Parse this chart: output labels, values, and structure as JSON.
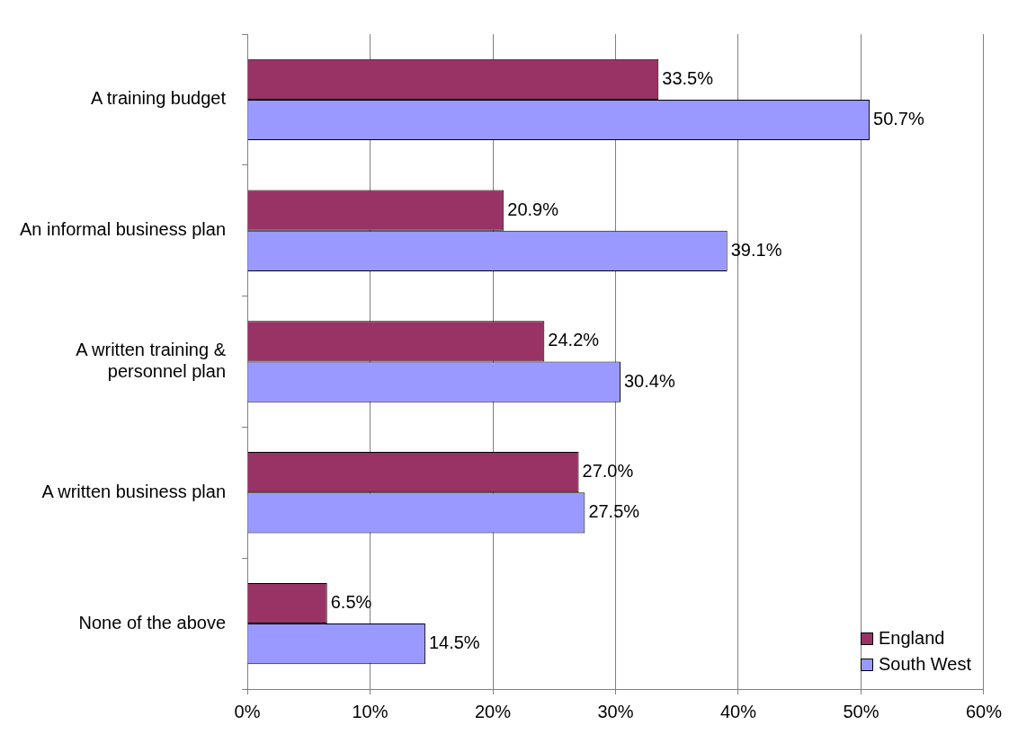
{
  "chart_data": {
    "type": "bar",
    "orientation": "horizontal",
    "categories": [
      "A training budget",
      "An informal business plan",
      "A written training & personnel plan",
      "A written business plan",
      "None of the above"
    ],
    "series": [
      {
        "name": "England",
        "color": "#993366",
        "values": [
          33.5,
          20.9,
          24.2,
          27.0,
          6.5
        ],
        "value_labels": [
          "33.5%",
          "20.9%",
          "24.2%",
          "27.0%",
          "6.5%"
        ]
      },
      {
        "name": "South West",
        "color": "#9999ff",
        "values": [
          50.7,
          39.1,
          30.4,
          27.5,
          14.5
        ],
        "value_labels": [
          "50.7%",
          "39.1%",
          "30.4%",
          "27.5%",
          "14.5%"
        ]
      }
    ],
    "xlim": [
      0,
      60
    ],
    "xticks": [
      {
        "value": 0,
        "label": "0%"
      },
      {
        "value": 10,
        "label": "10%"
      },
      {
        "value": 20,
        "label": "20%"
      },
      {
        "value": 30,
        "label": "30%"
      },
      {
        "value": 40,
        "label": "40%"
      },
      {
        "value": 50,
        "label": "50%"
      },
      {
        "value": 60,
        "label": "60%"
      }
    ],
    "grid": "x",
    "legend": "bottom right"
  }
}
